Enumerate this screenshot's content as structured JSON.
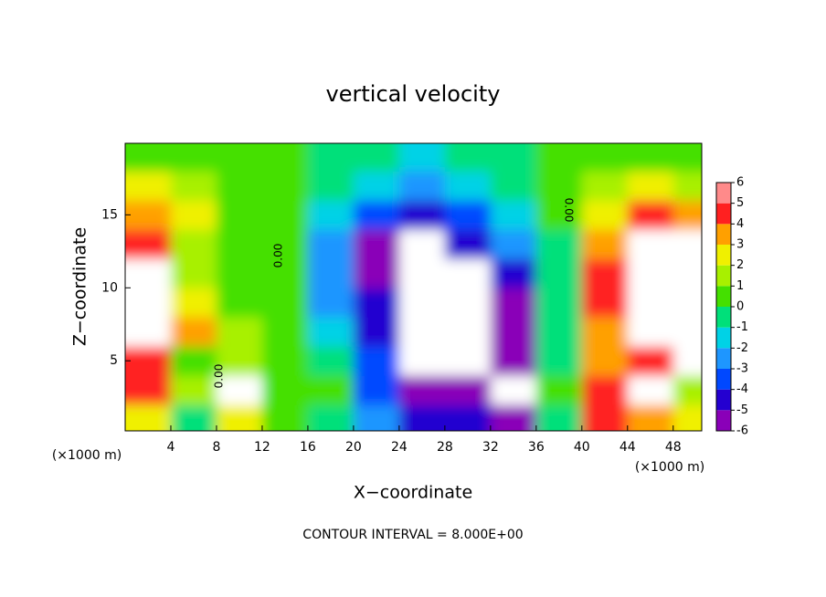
{
  "chart_data": {
    "type": "heatmap",
    "title": "vertical velocity",
    "x_label": "X−coordinate",
    "y_label": "Z−coordinate",
    "x_unit_label": "(×1000 m)",
    "x_unit_label_right": "(×1000 m)",
    "footer": "CONTOUR INTERVAL = 8.000E+00",
    "contour_labels": [
      "0.00",
      "0.00",
      "0.00"
    ],
    "x": [
      2,
      6,
      10,
      14,
      18,
      22,
      26,
      30,
      34,
      38,
      42,
      46,
      50
    ],
    "y": [
      1,
      3,
      5,
      7,
      9,
      11,
      13,
      15,
      17,
      19
    ],
    "values": [
      [
        3,
        0,
        3,
        0.5,
        0,
        -2,
        -4,
        -4,
        -5,
        0,
        5,
        4,
        3
      ],
      [
        5,
        2,
        7,
        1,
        0.5,
        -3,
        -5,
        -5,
        -7,
        0.5,
        5,
        7,
        2
      ],
      [
        5,
        1,
        2,
        1,
        0,
        -3,
        -7,
        -7,
        -6,
        0,
        4,
        5,
        7
      ],
      [
        7,
        4,
        2,
        1,
        -1,
        -4,
        -8,
        -7,
        -5,
        0,
        4,
        7,
        7
      ],
      [
        7,
        3,
        1,
        1,
        -2,
        -4,
        -7,
        -7,
        -5,
        0,
        5,
        7,
        7
      ],
      [
        7,
        2,
        1,
        1,
        -2,
        -5,
        -7,
        -7,
        -4,
        0,
        5,
        7,
        7
      ],
      [
        5,
        2,
        1,
        0.5,
        -2,
        -5,
        -7,
        -4,
        -2,
        0,
        4,
        7,
        7
      ],
      [
        4,
        3,
        1,
        0.5,
        -1,
        -3,
        -4,
        -3,
        -1,
        0.5,
        3,
        5,
        4
      ],
      [
        3,
        2,
        1,
        0.5,
        -0.5,
        -1.5,
        -2,
        -1.5,
        -0.5,
        1,
        2,
        3,
        2
      ],
      [
        1,
        1,
        1,
        0.5,
        0,
        -0.5,
        -1,
        -0.5,
        0,
        1,
        1,
        1,
        1
      ]
    ],
    "xlim": [
      0,
      50.5
    ],
    "ylim": [
      0.2,
      19.9
    ],
    "xticks": [
      4,
      8,
      12,
      16,
      20,
      24,
      28,
      32,
      36,
      40,
      44,
      48
    ],
    "yticks": [
      5,
      10,
      15
    ],
    "colorbar": {
      "ticks": [
        -6,
        -5,
        -4,
        -3,
        -2,
        -1,
        0,
        1,
        2,
        3,
        4,
        5,
        6
      ],
      "colors": [
        "#8a00b8",
        "#2400d0",
        "#0048ff",
        "#1e96ff",
        "#00d2e6",
        "#00e07a",
        "#44e000",
        "#a8f000",
        "#f0f000",
        "#ffa000",
        "#ff2020",
        "#ff8a8a"
      ],
      "out_of_range_color": "#ffffff"
    }
  }
}
